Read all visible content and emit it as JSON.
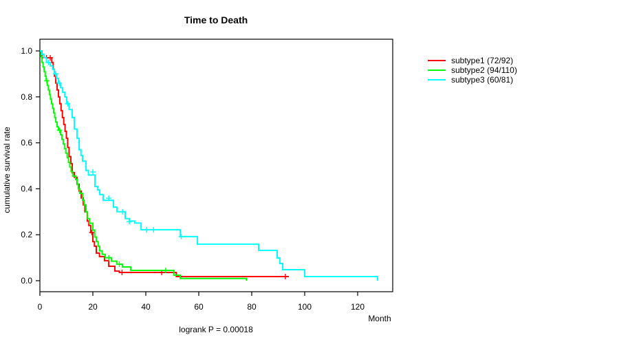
{
  "header": {
    "title": "Time to Death"
  },
  "footnote": {
    "text": "logrank P = 0.00018"
  },
  "axes": {
    "x": {
      "label": "Month",
      "ticks": [
        0,
        20,
        40,
        60,
        80,
        100,
        120
      ],
      "range": [
        0,
        133
      ]
    },
    "y": {
      "label": "cumulative survival rate",
      "ticks": [
        0.0,
        0.2,
        0.4,
        0.6,
        0.8,
        1.0
      ],
      "range": [
        0,
        1
      ]
    }
  },
  "chart_data": {
    "type": "line",
    "subtype": "kaplan-meier-step",
    "title": "Time to Death",
    "xlabel": "Month",
    "ylabel": "cumulative survival rate",
    "xlim": [
      0,
      133
    ],
    "ylim": [
      0,
      1
    ],
    "grid": false,
    "legend_position": "right-outside",
    "footnote": "logrank P = 0.00018",
    "series": [
      {
        "id": "subtype1",
        "name": "subtype1 (72/92)",
        "color": "#ff0000",
        "steps": [
          [
            0,
            1.0
          ],
          [
            0.8,
            0.97
          ],
          [
            4.5,
            0.95
          ],
          [
            5,
            0.92
          ],
          [
            5.5,
            0.89
          ],
          [
            6,
            0.86
          ],
          [
            6.5,
            0.83
          ],
          [
            7,
            0.8
          ],
          [
            7.5,
            0.77
          ],
          [
            8,
            0.74
          ],
          [
            8.5,
            0.71
          ],
          [
            9,
            0.68
          ],
          [
            9.5,
            0.65
          ],
          [
            10,
            0.62
          ],
          [
            10.5,
            0.58
          ],
          [
            11,
            0.54
          ],
          [
            11.7,
            0.51
          ],
          [
            12.2,
            0.47
          ],
          [
            13,
            0.45
          ],
          [
            14,
            0.42
          ],
          [
            14.8,
            0.39
          ],
          [
            15.6,
            0.36
          ],
          [
            16.4,
            0.33
          ],
          [
            17,
            0.3
          ],
          [
            17.9,
            0.26
          ],
          [
            18.5,
            0.24
          ],
          [
            19.2,
            0.21
          ],
          [
            20,
            0.17
          ],
          [
            20.6,
            0.15
          ],
          [
            21.3,
            0.12
          ],
          [
            22.5,
            0.105
          ],
          [
            24.4,
            0.087
          ],
          [
            26,
            0.063
          ],
          [
            28.3,
            0.042
          ],
          [
            30,
            0.036
          ],
          [
            51.5,
            0.018
          ],
          [
            94,
            0.018
          ]
        ],
        "censors": [
          [
            2.5,
            0.97
          ],
          [
            3.9,
            0.97
          ],
          [
            19.6,
            0.21
          ],
          [
            31,
            0.036
          ],
          [
            46,
            0.036
          ],
          [
            92.7,
            0.018
          ]
        ]
      },
      {
        "id": "subtype2",
        "name": "subtype2 (94/110)",
        "color": "#00ff00",
        "steps": [
          [
            0,
            1.0
          ],
          [
            0.4,
            0.975
          ],
          [
            0.8,
            0.95
          ],
          [
            1.2,
            0.93
          ],
          [
            1.6,
            0.91
          ],
          [
            2,
            0.89
          ],
          [
            2.4,
            0.87
          ],
          [
            2.8,
            0.85
          ],
          [
            3.2,
            0.83
          ],
          [
            3.6,
            0.81
          ],
          [
            4,
            0.79
          ],
          [
            4.4,
            0.77
          ],
          [
            4.8,
            0.75
          ],
          [
            5.2,
            0.73
          ],
          [
            5.6,
            0.71
          ],
          [
            6,
            0.69
          ],
          [
            6.5,
            0.67
          ],
          [
            7,
            0.655
          ],
          [
            7.8,
            0.635
          ],
          [
            8.3,
            0.615
          ],
          [
            8.8,
            0.595
          ],
          [
            9.3,
            0.575
          ],
          [
            9.8,
            0.555
          ],
          [
            10.3,
            0.535
          ],
          [
            10.8,
            0.515
          ],
          [
            11.3,
            0.495
          ],
          [
            11.8,
            0.475
          ],
          [
            12.4,
            0.455
          ],
          [
            13.5,
            0.44
          ],
          [
            14.1,
            0.42
          ],
          [
            14.5,
            0.4
          ],
          [
            15,
            0.38
          ],
          [
            16.1,
            0.35
          ],
          [
            16.7,
            0.33
          ],
          [
            17.4,
            0.3
          ],
          [
            18,
            0.27
          ],
          [
            18.7,
            0.25
          ],
          [
            20,
            0.22
          ],
          [
            20.7,
            0.19
          ],
          [
            21.3,
            0.17
          ],
          [
            22,
            0.15
          ],
          [
            22.6,
            0.13
          ],
          [
            23.5,
            0.115
          ],
          [
            24.7,
            0.1
          ],
          [
            27,
            0.085
          ],
          [
            29,
            0.072
          ],
          [
            31.2,
            0.06
          ],
          [
            34.3,
            0.045
          ],
          [
            50.6,
            0.024
          ],
          [
            53,
            0.01
          ],
          [
            78,
            0.0
          ]
        ],
        "censors": [
          [
            2.6,
            0.87
          ],
          [
            7.4,
            0.655
          ],
          [
            26,
            0.1
          ],
          [
            30,
            0.072
          ],
          [
            47.5,
            0.045
          ]
        ]
      },
      {
        "id": "subtype3",
        "name": "subtype3 (60/81)",
        "color": "#00ffff",
        "steps": [
          [
            0,
            1.0
          ],
          [
            0.7,
            0.985
          ],
          [
            1.5,
            0.97
          ],
          [
            2.5,
            0.95
          ],
          [
            4,
            0.935
          ],
          [
            4.8,
            0.92
          ],
          [
            5.5,
            0.9
          ],
          [
            6.3,
            0.88
          ],
          [
            7,
            0.86
          ],
          [
            7.8,
            0.84
          ],
          [
            8.6,
            0.82
          ],
          [
            9.4,
            0.8
          ],
          [
            10.1,
            0.77
          ],
          [
            11,
            0.745
          ],
          [
            12.2,
            0.71
          ],
          [
            13,
            0.66
          ],
          [
            14,
            0.62
          ],
          [
            14.8,
            0.57
          ],
          [
            15.5,
            0.545
          ],
          [
            16.1,
            0.52
          ],
          [
            17.4,
            0.48
          ],
          [
            18.3,
            0.46
          ],
          [
            20.8,
            0.41
          ],
          [
            21.8,
            0.395
          ],
          [
            22.6,
            0.375
          ],
          [
            23.9,
            0.35
          ],
          [
            27.8,
            0.32
          ],
          [
            29.1,
            0.3
          ],
          [
            32.2,
            0.27
          ],
          [
            33.8,
            0.26
          ],
          [
            35.8,
            0.251
          ],
          [
            38.2,
            0.222
          ],
          [
            53,
            0.192
          ],
          [
            59.5,
            0.159
          ],
          [
            82.6,
            0.132
          ],
          [
            89.6,
            0.099
          ],
          [
            90.6,
            0.075
          ],
          [
            91.7,
            0.048
          ],
          [
            100,
            0.018
          ],
          [
            127.5,
            0.0
          ]
        ],
        "censors": [
          [
            3.2,
            0.95
          ],
          [
            6,
            0.9
          ],
          [
            7.3,
            0.86
          ],
          [
            10.5,
            0.77
          ],
          [
            20,
            0.473
          ],
          [
            26,
            0.359
          ],
          [
            31.2,
            0.3
          ],
          [
            33.8,
            0.257
          ],
          [
            40.3,
            0.222
          ],
          [
            42.9,
            0.222
          ],
          [
            53.4,
            0.192
          ]
        ]
      }
    ]
  },
  "colors": {
    "axis": "#000000",
    "background": "#ffffff"
  }
}
